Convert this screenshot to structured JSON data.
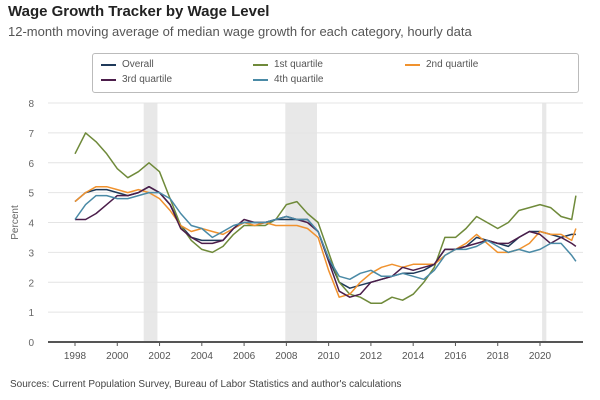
{
  "chart_data": {
    "type": "line",
    "title": "Wage Growth Tracker by Wage Level",
    "subtitle": "12-month moving average of median wage growth for each category, hourly data",
    "xlabel": "",
    "ylabel": "Percent",
    "xlim": [
      1997.5,
      2021.9
    ],
    "ylim": [
      0,
      8
    ],
    "yticks": [
      "0",
      "1",
      "2",
      "3",
      "4",
      "5",
      "6",
      "7",
      "8"
    ],
    "xticks": [
      "1998",
      "2000",
      "2002",
      "2004",
      "2006",
      "2008",
      "2010",
      "2012",
      "2014",
      "2016",
      "2018",
      "2020"
    ],
    "grid": true,
    "legend_position": "top",
    "recessions": [
      [
        2001.25,
        2001.9
      ],
      [
        2007.95,
        2009.45
      ],
      [
        2020.1,
        2020.3
      ]
    ],
    "x": [
      1998,
      1998.5,
      1999,
      1999.5,
      2000,
      2000.5,
      2001,
      2001.5,
      2002,
      2002.5,
      2003,
      2003.5,
      2004,
      2004.5,
      2005,
      2005.5,
      2006,
      2006.5,
      2007,
      2007.5,
      2008,
      2008.5,
      2009,
      2009.5,
      2010,
      2010.5,
      2011,
      2011.5,
      2012,
      2012.5,
      2013,
      2013.5,
      2014,
      2014.5,
      2015,
      2015.5,
      2016,
      2016.5,
      2017,
      2017.5,
      2018,
      2018.5,
      2019,
      2019.5,
      2020,
      2020.5,
      2021,
      2021.5,
      2021.7
    ],
    "series": [
      {
        "name": "Overall",
        "color": "#1f3a5a",
        "values": [
          4.7,
          5.0,
          5.1,
          5.1,
          5.0,
          4.9,
          5.0,
          5.2,
          5.0,
          4.6,
          3.9,
          3.5,
          3.4,
          3.4,
          3.4,
          3.8,
          4.0,
          4.0,
          4.0,
          4.1,
          4.1,
          4.1,
          4.1,
          3.7,
          2.8,
          2.0,
          1.8,
          1.9,
          2.0,
          2.1,
          2.2,
          2.3,
          2.3,
          2.4,
          2.6,
          3.1,
          3.1,
          3.2,
          3.5,
          3.4,
          3.3,
          3.2,
          3.5,
          3.7,
          3.7,
          3.6,
          3.5,
          3.6,
          3.6
        ]
      },
      {
        "name": "1st quartile",
        "color": "#6f8a3a",
        "values": [
          6.3,
          7.0,
          6.7,
          6.3,
          5.8,
          5.5,
          5.7,
          6.0,
          5.7,
          4.8,
          3.9,
          3.4,
          3.1,
          3.0,
          3.2,
          3.6,
          3.9,
          3.9,
          3.9,
          4.1,
          4.6,
          4.7,
          4.3,
          4.0,
          3.0,
          2.0,
          1.6,
          1.5,
          1.3,
          1.3,
          1.5,
          1.4,
          1.6,
          2.0,
          2.5,
          3.5,
          3.5,
          3.8,
          4.2,
          4.0,
          3.8,
          4.0,
          4.4,
          4.5,
          4.6,
          4.5,
          4.2,
          4.1,
          4.9
        ]
      },
      {
        "name": "2nd quartile",
        "color": "#f0922e",
        "values": [
          4.7,
          5.0,
          5.2,
          5.2,
          5.1,
          5.0,
          5.1,
          5.0,
          4.8,
          4.4,
          3.9,
          3.7,
          3.8,
          3.7,
          3.6,
          3.8,
          4.0,
          3.9,
          4.0,
          3.9,
          3.9,
          3.9,
          3.8,
          3.5,
          2.4,
          1.5,
          1.6,
          2.0,
          2.3,
          2.5,
          2.6,
          2.5,
          2.6,
          2.6,
          2.6,
          2.9,
          3.1,
          3.3,
          3.6,
          3.3,
          3.0,
          3.0,
          3.1,
          3.3,
          3.7,
          3.6,
          3.6,
          3.4,
          3.8
        ]
      },
      {
        "name": "3rd quartile",
        "color": "#4b1d4a",
        "values": [
          4.1,
          4.1,
          4.3,
          4.6,
          4.9,
          4.9,
          5.0,
          5.2,
          5.0,
          4.6,
          3.8,
          3.5,
          3.3,
          3.3,
          3.4,
          3.8,
          4.1,
          4.0,
          4.0,
          4.1,
          4.2,
          4.1,
          4.0,
          3.7,
          2.7,
          1.7,
          1.5,
          1.6,
          2.0,
          2.1,
          2.2,
          2.5,
          2.4,
          2.5,
          2.6,
          3.1,
          3.1,
          3.2,
          3.3,
          3.4,
          3.3,
          3.3,
          3.5,
          3.7,
          3.6,
          3.3,
          3.5,
          3.3,
          3.2
        ]
      },
      {
        "name": "4th quartile",
        "color": "#4a8aa6",
        "values": [
          4.1,
          4.6,
          4.9,
          4.9,
          4.8,
          4.8,
          4.9,
          5.0,
          5.0,
          4.8,
          4.3,
          3.9,
          3.8,
          3.5,
          3.7,
          3.9,
          4.0,
          4.0,
          4.0,
          4.1,
          4.2,
          4.1,
          4.1,
          3.7,
          2.8,
          2.2,
          2.1,
          2.3,
          2.4,
          2.2,
          2.2,
          2.3,
          2.2,
          2.1,
          2.4,
          2.9,
          3.1,
          3.1,
          3.2,
          3.4,
          3.2,
          3.0,
          3.1,
          3.0,
          3.1,
          3.3,
          3.3,
          2.9,
          2.7
        ]
      }
    ],
    "source": "Sources: Current Population Survey, Bureau of Labor Statistics and author's calculations"
  }
}
